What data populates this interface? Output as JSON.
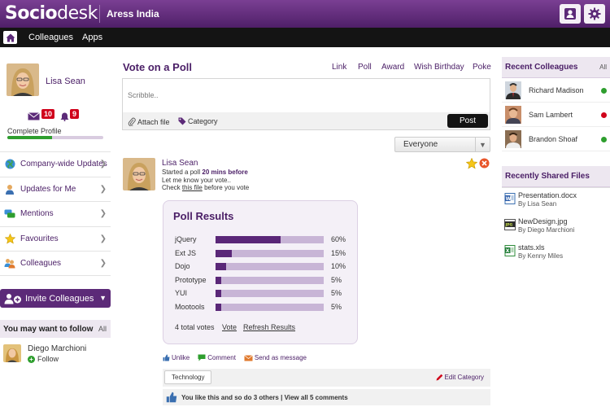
{
  "brand": {
    "logo_bold": "Socio",
    "logo_light": "desk",
    "company": "Aress India"
  },
  "nav": {
    "items": [
      "Colleagues",
      "Apps"
    ]
  },
  "profile": {
    "name": "Lisa Sean",
    "messages_count": "10",
    "notifications_count": "9",
    "completion_label": "Complete Profile",
    "completion_fraction": 0.47
  },
  "menu": {
    "items": [
      {
        "label": "Company-wide Updates",
        "icon": "globe-icon"
      },
      {
        "label": "Updates for Me",
        "icon": "user-icon"
      },
      {
        "label": "Mentions",
        "icon": "chat-bubbles-icon"
      },
      {
        "label": "Favourites",
        "icon": "star-icon"
      },
      {
        "label": "Colleagues",
        "icon": "people-icon"
      }
    ],
    "invite_label": "Invite Colleagues"
  },
  "follow": {
    "title": "You may want to follow",
    "all_label": "All",
    "suggestion": {
      "name": "Diego Marchioni",
      "follow_label": "Follow"
    }
  },
  "composer": {
    "title": "Vote on a Poll",
    "tabs": [
      "Link",
      "Poll",
      "Award",
      "Wish Birthday",
      "Poke"
    ],
    "placeholder": "Scribble..",
    "attach_label": "Attach file",
    "category_label": "Category",
    "post_label": "Post",
    "audience": "Everyone"
  },
  "feed_post": {
    "author": "Lisa Sean",
    "line1_prefix": "Started a poll",
    "line1_time": "20 mins before",
    "line2": "Let me know your vote..",
    "line3_prefix": "Check",
    "line3_link": "this file",
    "line3_suffix": "before you vote",
    "poll": {
      "title": "Poll Results",
      "options": [
        {
          "label": "jQuery",
          "percent": 60,
          "percent_label": "60%"
        },
        {
          "label": "Ext JS",
          "percent": 15,
          "percent_label": "15%"
        },
        {
          "label": "Dojo",
          "percent": 10,
          "percent_label": "10%"
        },
        {
          "label": "Prototype",
          "percent": 5,
          "percent_label": "5%"
        },
        {
          "label": "YUI",
          "percent": 5,
          "percent_label": "5%"
        },
        {
          "label": "Mootools",
          "percent": 5,
          "percent_label": "5%"
        }
      ],
      "total_votes": "4 total votes",
      "vote_label": "Vote",
      "refresh_label": "Refresh Results"
    },
    "actions": {
      "unlike": "Unlike",
      "comment": "Comment",
      "send": "Send as message"
    },
    "tag": "Technology",
    "edit_category": "Edit Category",
    "likes_text": "You like this and so do 3 others",
    "view_comments": "View all 5 comments"
  },
  "recent_colleagues": {
    "title": "Recent Colleagues",
    "all_label": "All",
    "items": [
      {
        "name": "Richard Madison",
        "status_color": "#2e9e2e"
      },
      {
        "name": "Sam Lambert",
        "status_color": "#d0021b"
      },
      {
        "name": "Brandon Shoaf",
        "status_color": "#2e9e2e"
      }
    ]
  },
  "shared_files": {
    "title": "Recently Shared Files",
    "items": [
      {
        "name": "Presentation.docx",
        "by": "By Lisa Sean",
        "icon": "word-doc-icon"
      },
      {
        "name": "NewDesign.jpg",
        "by": "By Diego Marchioni",
        "icon": "image-file-icon"
      },
      {
        "name": "stats.xls",
        "by": "By Kenny Miles",
        "icon": "excel-file-icon"
      }
    ]
  },
  "colors": {
    "brand": "#5c2a78",
    "topbar": "#6a3283",
    "navbar": "#141414",
    "online": "#2e9e2e",
    "busy": "#d0021b"
  }
}
